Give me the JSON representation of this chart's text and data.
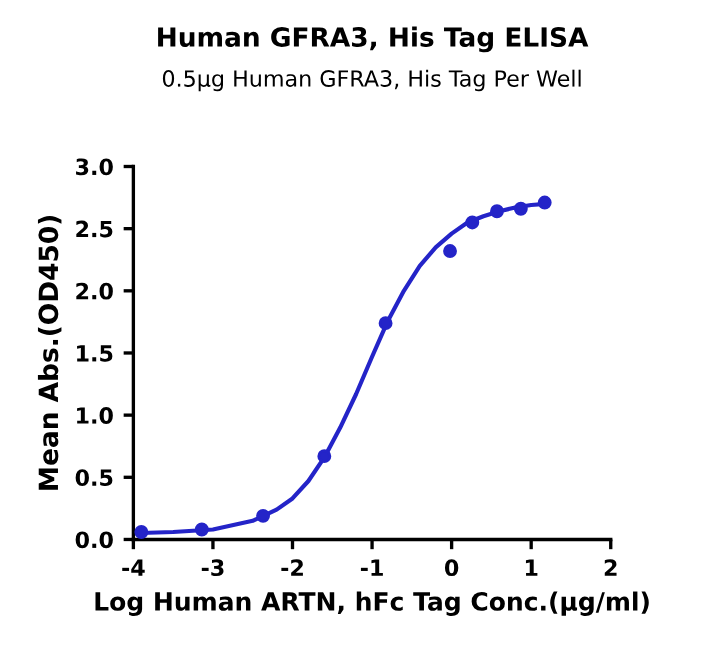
{
  "chart_data": {
    "type": "scatter",
    "title": "Human GFRA3, His Tag ELISA",
    "subtitle": "0.5μg Human GFRA3, His Tag Per Well",
    "xlabel": "Log Human ARTN, hFc Tag Conc.(μg/ml)",
    "ylabel": "Mean Abs.(OD450)",
    "series": [
      {
        "color": "#2424c8",
        "marker": "circle",
        "x": [
          -3.9,
          -3.14,
          -2.37,
          -1.6,
          -0.83,
          -0.02,
          0.26,
          0.57,
          0.87,
          1.17
        ],
        "values": [
          0.06,
          0.08,
          0.19,
          0.67,
          1.74,
          2.32,
          2.55,
          2.64,
          2.66,
          2.71
        ]
      },
      {
        "type": "line",
        "color": "#2424c8",
        "x": [
          -4,
          -3.5,
          -3,
          -2.5,
          -2.2,
          -2,
          -1.8,
          -1.6,
          -1.4,
          -1.2,
          -1.0,
          -0.8,
          -0.6,
          -0.4,
          -0.2,
          0,
          0.2,
          0.4,
          0.6,
          0.8,
          1.0,
          1.2
        ],
        "values": [
          0.05,
          0.06,
          0.08,
          0.15,
          0.24,
          0.33,
          0.47,
          0.66,
          0.9,
          1.17,
          1.47,
          1.76,
          2.0,
          2.2,
          2.35,
          2.46,
          2.55,
          2.6,
          2.64,
          2.67,
          2.69,
          2.7
        ]
      }
    ],
    "xlim": [
      -4,
      2
    ],
    "xticks": [
      -4,
      -3,
      -2,
      -1,
      0,
      1,
      2
    ],
    "ylim": [
      0,
      3
    ],
    "yticks": [
      {
        "value": 0,
        "label": "0.0"
      },
      {
        "value": 0.5,
        "label": "0.5"
      },
      {
        "value": 1,
        "label": "1.0"
      },
      {
        "value": 1.5,
        "label": "1.5"
      },
      {
        "value": 2,
        "label": "2.0"
      },
      {
        "value": 2.5,
        "label": "2.5"
      },
      {
        "value": 3,
        "label": "3.0"
      }
    ],
    "grid": false,
    "legend": false
  }
}
